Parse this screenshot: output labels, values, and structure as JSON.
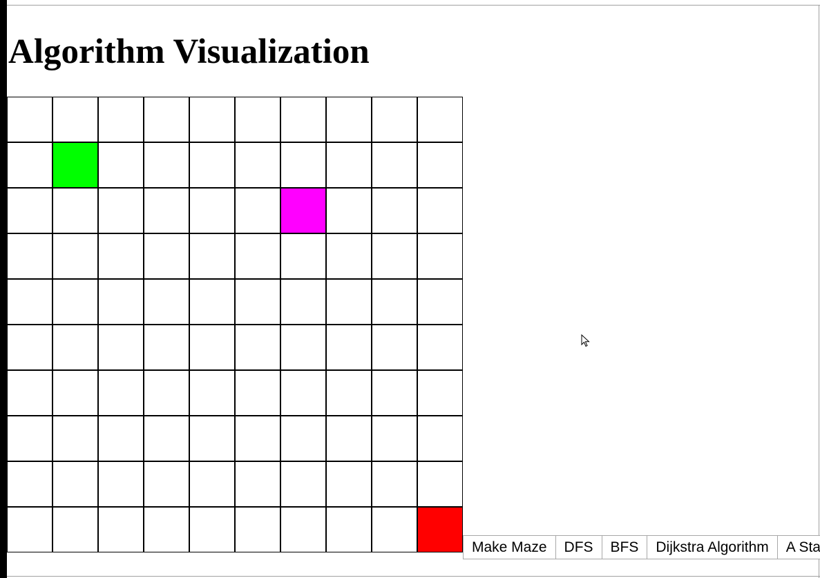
{
  "page": {
    "title": "Algorithm Visualization"
  },
  "grid": {
    "rows": 10,
    "cols": 10,
    "special_cells": [
      {
        "row": 1,
        "col": 1,
        "role": "start",
        "color": "#00ff00"
      },
      {
        "row": 2,
        "col": 6,
        "role": "marker",
        "color": "#ff00ff"
      },
      {
        "row": 9,
        "col": 9,
        "role": "end",
        "color": "#ff0000"
      }
    ]
  },
  "controls": {
    "make_maze_label": "Make Maze",
    "dfs_label": "DFS",
    "bfs_label": "BFS",
    "dijkstra_label": "Dijkstra Algorithm",
    "astar_label": "A Star"
  },
  "colors": {
    "cell_border": "#000000",
    "cell_background": "#ffffff"
  },
  "icons": {
    "cursor": "mouse-pointer-icon"
  }
}
